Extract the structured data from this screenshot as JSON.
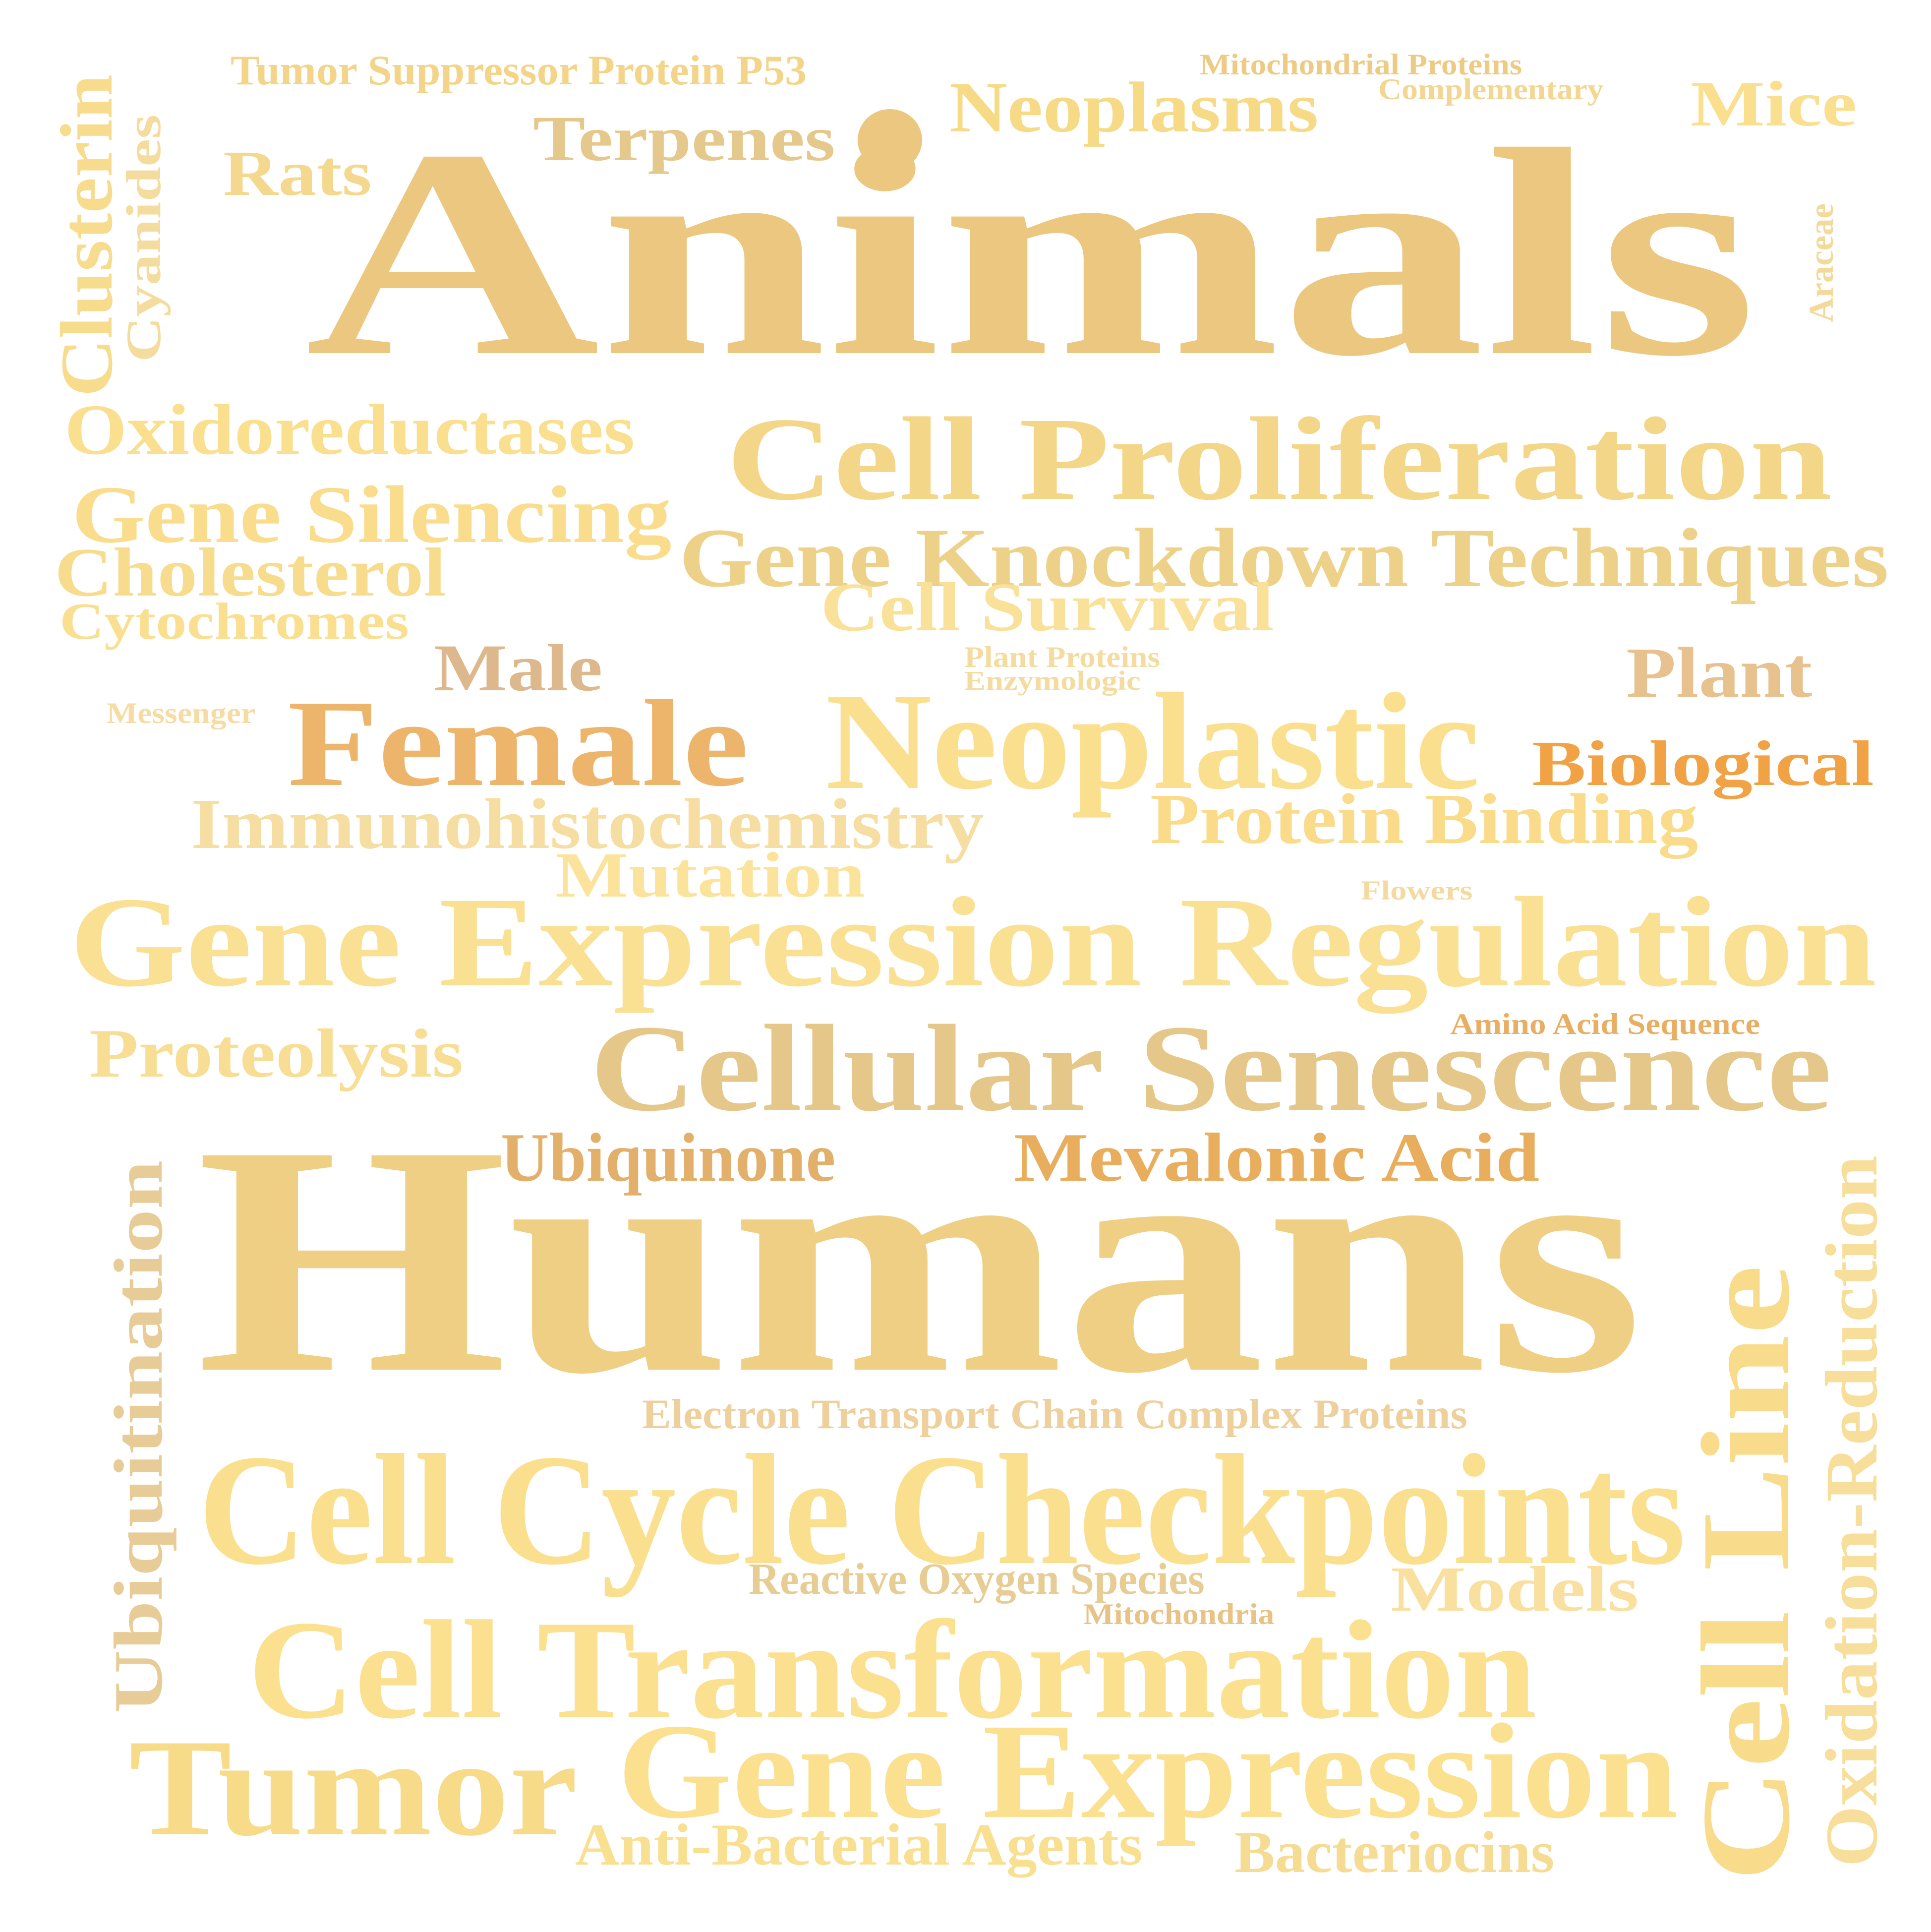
{
  "background_color": "#ffffff",
  "words": [
    {
      "text": "Tumor Suppressor Protein P53",
      "color": "#F3D488"
    },
    {
      "text": "Mitochondrial Proteins",
      "color": "#EDCB85"
    },
    {
      "text": "Complementary",
      "color": "#F2D692"
    },
    {
      "text": "Neoplasms",
      "color": "#F6DA86"
    },
    {
      "text": "Mice",
      "color": "#FAE08E"
    },
    {
      "text": "Terpenes",
      "color": "#E5C88C"
    },
    {
      "text": "Rats",
      "color": "#F3D88D"
    },
    {
      "text": "Animals",
      "color": "#EBC77F"
    },
    {
      "text": "Clusterin",
      "color": "#F7DC8E"
    },
    {
      "text": "Cyanides",
      "color": "#F4DC9E"
    },
    {
      "text": "Araceae",
      "color": "#F3D99A"
    },
    {
      "text": "Oxidoreductases",
      "color": "#FADF8E"
    },
    {
      "text": "Cell Proliferation",
      "color": "#F3D688"
    },
    {
      "text": "Gene Silencing",
      "color": "#F9DD8C"
    },
    {
      "text": "Gene Knockdown Techniques",
      "color": "#EED189"
    },
    {
      "text": "Cholesterol",
      "color": "#F8DC8D"
    },
    {
      "text": "Cytochromes",
      "color": "#FADF90"
    },
    {
      "text": "Cell Survival",
      "color": "#FAE19A"
    },
    {
      "text": "Male",
      "color": "#DDB88C"
    },
    {
      "text": "Plant Proteins",
      "color": "#F4DB9F"
    },
    {
      "text": "Enzymologic",
      "color": "#F4DB9F"
    },
    {
      "text": "Plant",
      "color": "#E7C28F"
    },
    {
      "text": "Messenger",
      "color": "#F6DCA2"
    },
    {
      "text": "Female",
      "color": "#EDB56C"
    },
    {
      "text": "Neoplastic",
      "color": "#FAE08E"
    },
    {
      "text": "Biological",
      "color": "#F0A244"
    },
    {
      "text": "Immunohistochemistry",
      "color": "#F6DEA2"
    },
    {
      "text": "Protein Binding",
      "color": "#F9DB8A"
    },
    {
      "text": "Mutation",
      "color": "#FBE39C"
    },
    {
      "text": "Flowers",
      "color": "#F4DAA0"
    },
    {
      "text": "Gene Expression Regulation",
      "color": "#FAE092"
    },
    {
      "text": "Proteolysis",
      "color": "#F8DE94"
    },
    {
      "text": "Amino Acid Sequence",
      "color": "#E8AE63"
    },
    {
      "text": "Cellular Senescence",
      "color": "#E6C78A"
    },
    {
      "text": "Ubiquinone",
      "color": "#E3B06C"
    },
    {
      "text": "Mevalonic Acid",
      "color": "#E8AE5D"
    },
    {
      "text": "Humans",
      "color": "#EECF84"
    },
    {
      "text": "Ubiquitination",
      "color": "#E7CC97"
    },
    {
      "text": "Oxidation-Reduction",
      "color": "#F7DE9A"
    },
    {
      "text": "Cell Line",
      "color": "#F9DB8C"
    },
    {
      "text": "Electron Transport Chain Complex Proteins",
      "color": "#EED09C"
    },
    {
      "text": "Cell Cycle Checkpoints",
      "color": "#FAE08E"
    },
    {
      "text": "Reactive Oxygen Species",
      "color": "#E7CC94"
    },
    {
      "text": "Models",
      "color": "#F9E09E"
    },
    {
      "text": "Mitochondria",
      "color": "#E9C286"
    },
    {
      "text": "Cell Transformation",
      "color": "#FBE08F"
    },
    {
      "text": "Tumor",
      "color": "#F8DB88"
    },
    {
      "text": "Gene Expression",
      "color": "#FAE08F"
    },
    {
      "text": "Anti-Bacterial Agents",
      "color": "#F9DF90"
    },
    {
      "text": "Bacteriocins",
      "color": "#F6DB93"
    }
  ],
  "dot_color": "#EBC77F"
}
